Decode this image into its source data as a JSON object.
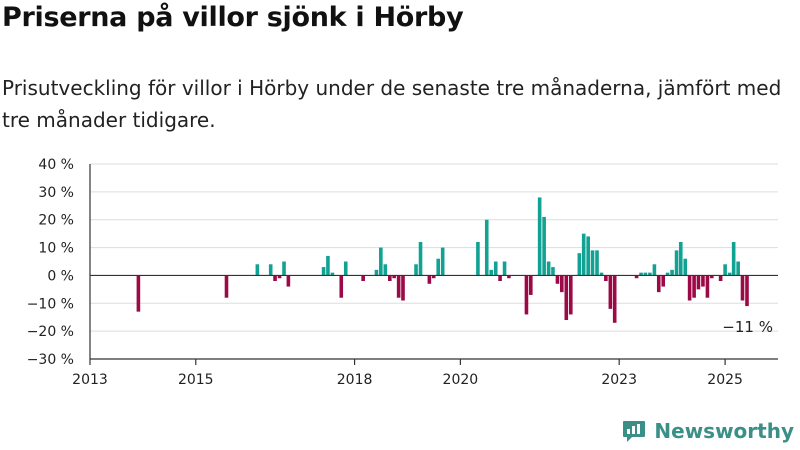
{
  "title": "Priserna på villor sjönk i Hörby",
  "subtitle": "Prisutveckling för villor i Hörby under de senaste tre månaderna, jämfört med tre månader tidigare.",
  "brand": {
    "name": "Newsworthy",
    "icon": "bar-chart-icon"
  },
  "colors": {
    "positive": "#11a294",
    "negative": "#9b0a47",
    "grid": "#dddddd",
    "axis": "#333333",
    "text": "#222222"
  },
  "chart_data": {
    "type": "bar",
    "xlabel": "",
    "ylabel": "",
    "ylim": [
      -30,
      40
    ],
    "xlim": [
      "2013-01-01",
      "2026-01-01"
    ],
    "yticks": [
      -30,
      -20,
      -10,
      0,
      10,
      20,
      30,
      40
    ],
    "ytick_labels": [
      "−30 %",
      "−20 %",
      "−10 %",
      "0 %",
      "10 %",
      "20 %",
      "30 %",
      "40 %"
    ],
    "xticks": [
      "2013-01-01",
      "2015-01-01",
      "2018-01-01",
      "2020-01-01",
      "2023-01-01",
      "2025-01-01"
    ],
    "xtick_labels": [
      "2013",
      "2015",
      "2018",
      "2020",
      "2023",
      "2025"
    ],
    "grid": true,
    "annotation": {
      "text": "−11 %",
      "x": "2025-06-01",
      "y": -11
    },
    "series": [
      {
        "x": [
          "2013-12-01",
          "2015-08-01",
          "2016-03-01",
          "2016-06-01",
          "2016-07-01",
          "2016-08-01",
          "2016-09-01",
          "2016-10-01",
          "2017-06-01",
          "2017-07-01",
          "2017-08-01",
          "2017-10-01",
          "2017-11-01",
          "2018-03-01",
          "2018-06-01",
          "2018-07-01",
          "2018-08-01",
          "2018-09-01",
          "2018-10-01",
          "2018-11-01",
          "2018-12-01",
          "2019-03-01",
          "2019-04-01",
          "2019-06-01",
          "2019-07-01",
          "2019-08-01",
          "2019-09-01",
          "2020-05-01",
          "2020-07-01",
          "2020-08-01",
          "2020-09-01",
          "2020-10-01",
          "2020-11-01",
          "2020-12-01",
          "2021-04-01",
          "2021-05-01",
          "2021-07-01",
          "2021-08-01",
          "2021-09-01",
          "2021-10-01",
          "2021-11-01",
          "2021-12-01",
          "2022-01-01",
          "2022-02-01",
          "2022-04-01",
          "2022-05-01",
          "2022-06-01",
          "2022-07-01",
          "2022-08-01",
          "2022-09-01",
          "2022-10-01",
          "2022-11-01",
          "2022-12-01",
          "2023-05-01",
          "2023-06-01",
          "2023-07-01",
          "2023-08-01",
          "2023-09-01",
          "2023-10-01",
          "2023-11-01",
          "2023-12-01",
          "2024-01-01",
          "2024-02-01",
          "2024-03-01",
          "2024-04-01",
          "2024-05-01",
          "2024-06-01",
          "2024-07-01",
          "2024-08-01",
          "2024-09-01",
          "2024-10-01",
          "2024-12-01",
          "2025-01-01",
          "2025-02-01",
          "2025-03-01",
          "2025-04-01",
          "2025-05-01",
          "2025-06-01"
        ],
        "values": [
          -13,
          -8,
          4,
          4,
          -2,
          -1,
          5,
          -4,
          3,
          7,
          1,
          -8,
          5,
          -2,
          2,
          10,
          4,
          -2,
          -1,
          -8,
          -9,
          4,
          12,
          -3,
          -1,
          6,
          10,
          12,
          20,
          2,
          5,
          -2,
          5,
          -1,
          -14,
          -7,
          28,
          21,
          5,
          3,
          -3,
          -6,
          -16,
          -14,
          8,
          15,
          14,
          9,
          9,
          1,
          -2,
          -12,
          -17,
          -1,
          1,
          1,
          1,
          4,
          -6,
          -4,
          1,
          2,
          9,
          12,
          6,
          -9,
          -8,
          -5,
          -4,
          -8,
          -1,
          -2,
          4,
          1,
          12,
          5,
          -9,
          -11
        ]
      }
    ]
  }
}
